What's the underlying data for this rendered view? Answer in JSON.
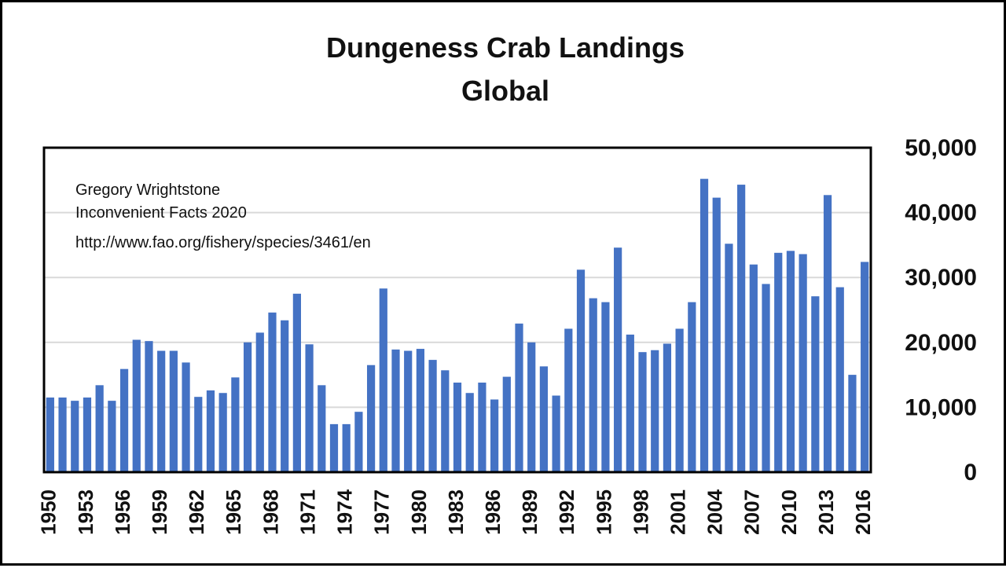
{
  "chart_data": {
    "type": "bar",
    "title": "Dungeness Crab Landings",
    "subtitle": "Global",
    "xlabel": "",
    "ylabel": "",
    "ylim": [
      0,
      50000
    ],
    "y_ticks": [
      0,
      10000,
      20000,
      30000,
      40000,
      50000
    ],
    "y_tick_labels": [
      "0",
      "10,000",
      "20,000",
      "30,000",
      "40,000",
      "50,000"
    ],
    "y_axis_position": "right",
    "grid": true,
    "bar_color": "#4472C4",
    "x_tick_labels": [
      "1950",
      "1953",
      "1956",
      "1959",
      "1962",
      "1965",
      "1968",
      "1971",
      "1974",
      "1977",
      "1980",
      "1983",
      "1986",
      "1989",
      "1992",
      "1995",
      "1998",
      "2001",
      "2004",
      "2007",
      "2010",
      "2013",
      "2016"
    ],
    "categories": [
      "1950",
      "1951",
      "1952",
      "1953",
      "1954",
      "1955",
      "1956",
      "1957",
      "1958",
      "1959",
      "1960",
      "1961",
      "1962",
      "1963",
      "1964",
      "1965",
      "1966",
      "1967",
      "1968",
      "1969",
      "1970",
      "1971",
      "1972",
      "1973",
      "1974",
      "1975",
      "1976",
      "1977",
      "1978",
      "1979",
      "1980",
      "1981",
      "1982",
      "1983",
      "1984",
      "1985",
      "1986",
      "1987",
      "1988",
      "1989",
      "1990",
      "1991",
      "1992",
      "1993",
      "1994",
      "1995",
      "1996",
      "1997",
      "1998",
      "1999",
      "2000",
      "2001",
      "2002",
      "2003",
      "2004",
      "2005",
      "2006",
      "2007",
      "2008",
      "2009",
      "2010",
      "2011",
      "2012",
      "2013",
      "2014",
      "2015",
      "2016"
    ],
    "values": [
      11500,
      11500,
      11000,
      11500,
      13400,
      11000,
      15900,
      20400,
      20200,
      18700,
      18700,
      16900,
      11600,
      12600,
      12200,
      14600,
      20000,
      21500,
      24600,
      23400,
      27500,
      19700,
      13400,
      7400,
      7400,
      9300,
      16500,
      28300,
      18900,
      18700,
      19000,
      17300,
      15700,
      13800,
      12200,
      13800,
      11200,
      14700,
      22900,
      20000,
      16300,
      11800,
      22100,
      31200,
      26800,
      26200,
      34600,
      21200,
      18500,
      18800,
      19800,
      22100,
      26200,
      45200,
      42300,
      35200,
      44300,
      32000,
      29000,
      33800,
      34100,
      33600,
      27100,
      42700,
      28500,
      15000,
      32400
    ]
  },
  "annotations": {
    "author": "Gregory Wrightstone",
    "book": "Inconvenient Facts 2020",
    "source_url": "http://www.fao.org/fishery/species/3461/en"
  }
}
